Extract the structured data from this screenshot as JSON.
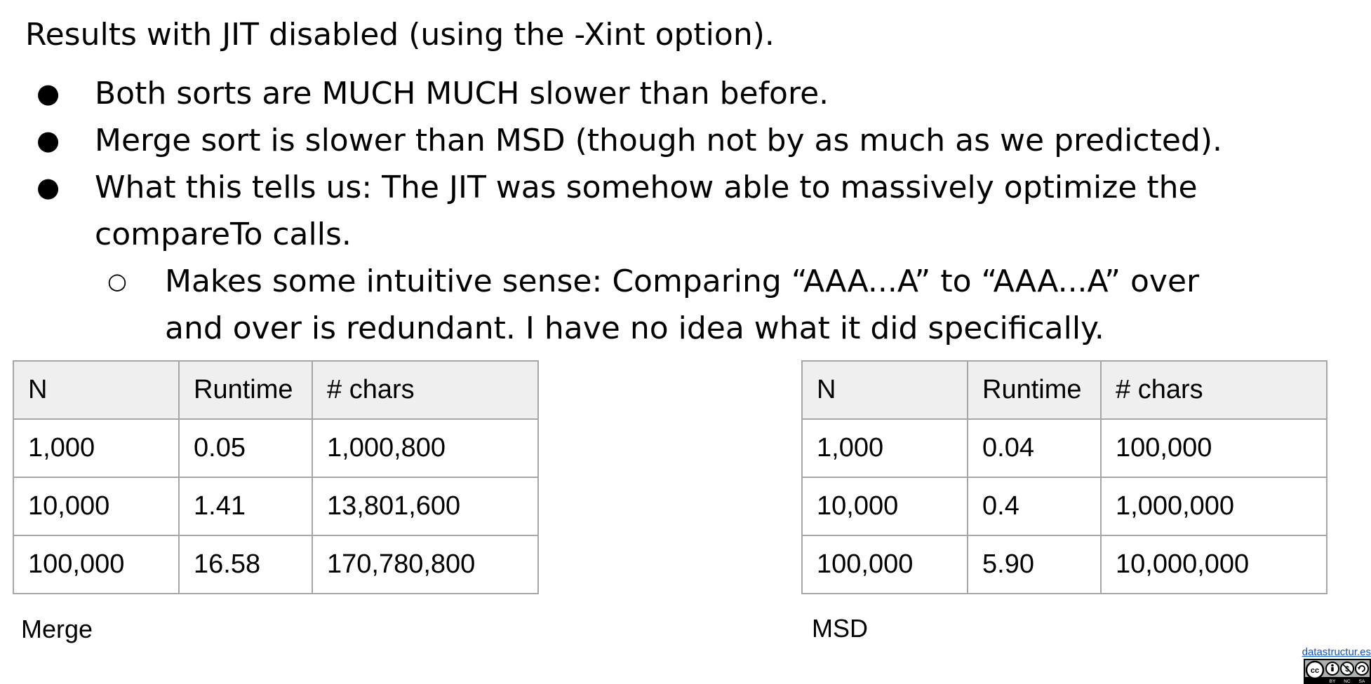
{
  "slide": {
    "heading": "Results with JIT disabled (using the -Xint option).",
    "bullets": [
      "Both sorts are MUCH MUCH slower than before.",
      "Merge sort is slower than MSD (though not by as much as we predicted).",
      "What this tells us: The JIT was somehow able to massively optimize the compareTo calls."
    ],
    "sub_bullet": "Makes some intuitive sense: Comparing “AAA...A” to “AAA...A” over and over is redundant. I have no idea what it did specifically.",
    "bullet_marker": "●",
    "sub_bullet_marker": "○"
  },
  "merge_table": {
    "headers": [
      "N",
      "Runtime",
      "# chars"
    ],
    "rows": [
      [
        "1,000",
        "0.05",
        "1,000,800"
      ],
      [
        "10,000",
        "1.41",
        "13,801,600"
      ],
      [
        "100,000",
        "16.58",
        "170,780,800"
      ]
    ],
    "caption": "Merge"
  },
  "msd_table": {
    "headers": [
      "N",
      "Runtime",
      "# chars"
    ],
    "rows": [
      [
        "1,000",
        "0.04",
        "100,000"
      ],
      [
        "10,000",
        "0.4",
        "1,000,000"
      ],
      [
        "100,000",
        "5.90",
        "10,000,000"
      ]
    ],
    "caption": "MSD"
  },
  "footer": {
    "link_text": "datastructur.es",
    "license_icon": "cc-by-nc-sa-icon",
    "license_labels": [
      "BY",
      "NC",
      "SA"
    ]
  },
  "colors": {
    "header_fill": "#efefef",
    "table_border": "#a6a6a6",
    "link": "#1155cc"
  }
}
